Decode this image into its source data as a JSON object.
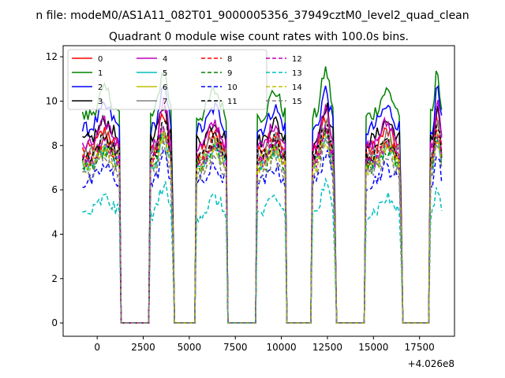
{
  "chart_data": {
    "type": "line",
    "suptitle": "n file: modeM0/AS1A11_082T01_9000005356_37949cztM0_level2_quad_clean",
    "title": "Quadrant 0 module wise count rates with 100.0s bins.",
    "xlabel": "",
    "ylabel": "",
    "offset_text": "+4.026e8",
    "xlim": [
      -1850,
      19400
    ],
    "ylim": [
      -0.6,
      12.5
    ],
    "xticks": [
      0,
      2500,
      5000,
      7500,
      10000,
      12500,
      15000,
      17500
    ],
    "yticks": [
      0,
      2,
      4,
      6,
      8,
      10,
      12
    ],
    "grid": false,
    "legend": {
      "placement": "top-left",
      "columns": 4
    },
    "on_intervals": [
      [
        -800,
        1250
      ],
      [
        2850,
        4100
      ],
      [
        5350,
        7050
      ],
      [
        8700,
        10250
      ],
      [
        11650,
        12900
      ],
      [
        14550,
        16500
      ],
      [
        18050,
        18750
      ]
    ],
    "series": [
      {
        "name": "0",
        "color": "#ff0000",
        "dash": "solid",
        "level": 7.8,
        "peak": 9.3
      },
      {
        "name": "1",
        "color": "#008000",
        "dash": "solid",
        "level": 9.3,
        "peak": 11.4
      },
      {
        "name": "2",
        "color": "#0000ff",
        "dash": "solid",
        "level": 8.7,
        "peak": 10.5
      },
      {
        "name": "3",
        "color": "#000000",
        "dash": "solid",
        "level": 8.2,
        "peak": 9.8
      },
      {
        "name": "4",
        "color": "#bf00bf",
        "dash": "solid",
        "level": 7.9,
        "peak": 9.9
      },
      {
        "name": "5",
        "color": "#00bfbf",
        "dash": "solid",
        "level": 7.1,
        "peak": 8.4
      },
      {
        "name": "6",
        "color": "#bfbf00",
        "dash": "solid",
        "level": 7.3,
        "peak": 8.7
      },
      {
        "name": "7",
        "color": "#808080",
        "dash": "solid",
        "level": 7.6,
        "peak": 9.0
      },
      {
        "name": "8",
        "color": "#ff0000",
        "dash": "dashed",
        "level": 7.4,
        "peak": 8.8
      },
      {
        "name": "9",
        "color": "#008000",
        "dash": "dashed",
        "level": 7.0,
        "peak": 8.5
      },
      {
        "name": "10",
        "color": "#0000ff",
        "dash": "dashed",
        "level": 6.3,
        "peak": 7.6
      },
      {
        "name": "11",
        "color": "#000000",
        "dash": "dashed",
        "level": 7.5,
        "peak": 9.0
      },
      {
        "name": "12",
        "color": "#bf00bf",
        "dash": "dashed",
        "level": 7.2,
        "peak": 8.7
      },
      {
        "name": "13",
        "color": "#00bfbf",
        "dash": "dashed",
        "level": 4.9,
        "peak": 6.2
      },
      {
        "name": "14",
        "color": "#bfbf00",
        "dash": "dashed",
        "level": 7.0,
        "peak": 8.3
      },
      {
        "name": "15",
        "color": "#808080",
        "dash": "dashed",
        "level": 6.7,
        "peak": 8.1
      }
    ]
  }
}
